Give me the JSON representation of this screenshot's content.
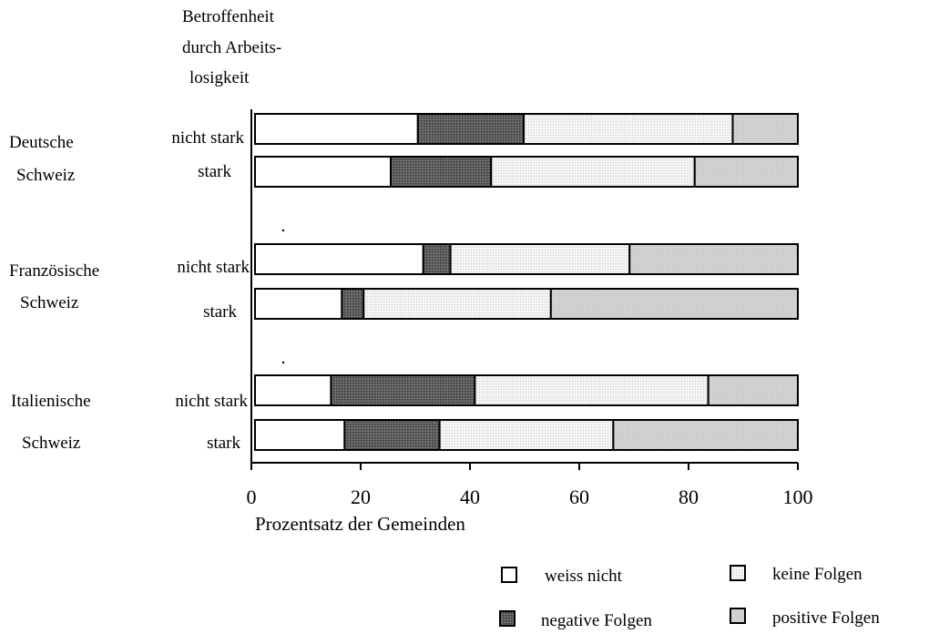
{
  "chart_data": {
    "type": "bar",
    "orientation": "horizontal",
    "stacked": true,
    "group_axis_title": [
      "Betroffenheit",
      "durch Arbeits-",
      "losigkeit"
    ],
    "groups": [
      {
        "label": [
          "Deutsche",
          "Schweiz"
        ],
        "rows": [
          "nicht stark",
          "stark"
        ]
      },
      {
        "label": [
          "Französische",
          "Schweiz"
        ],
        "rows": [
          "nicht stark",
          "stark"
        ]
      },
      {
        "label": [
          "Italienische",
          "Schweiz"
        ],
        "rows": [
          "nicht stark",
          "stark"
        ]
      }
    ],
    "series": [
      {
        "name": "weiss nicht",
        "color": "#ffffff",
        "values": [
          30,
          25,
          31,
          16,
          14,
          16.5
        ]
      },
      {
        "name": "negative Folgen",
        "color": "#555555",
        "values": [
          19.5,
          18.5,
          5,
          4,
          26.5,
          17.5
        ]
      },
      {
        "name": "keine Folgen",
        "color": "#f2f2f2",
        "values": [
          38.5,
          37.5,
          33,
          34.5,
          43,
          32
        ]
      },
      {
        "name": "positive Folgen",
        "color": "#d3d3d3",
        "values": [
          12,
          19,
          31,
          45.5,
          16.5,
          34
        ]
      }
    ],
    "xlabel": "Prozentsatz der Gemeinden",
    "xlim": [
      0,
      100
    ],
    "xticks": [
      0,
      20,
      40,
      60,
      80,
      100
    ],
    "grid": false,
    "legend_position": "bottom-right",
    "legend_order": [
      "weiss nicht",
      "keine Folgen",
      "negative Folgen",
      "positive Folgen"
    ]
  }
}
